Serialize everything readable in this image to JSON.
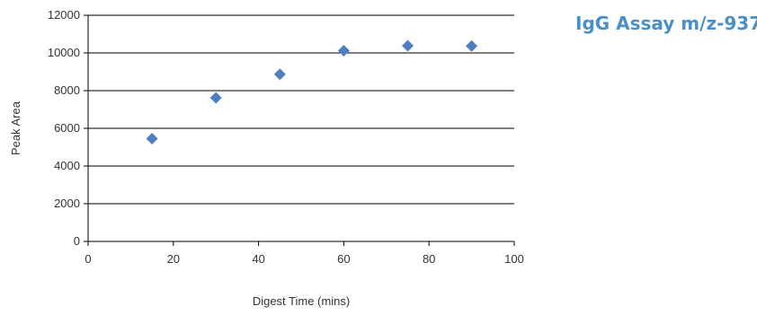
{
  "chart_data": {
    "type": "scatter",
    "title": "IgG Assay m/z-937",
    "xlabel": "Digest Time (mins)",
    "ylabel": "Peak Area",
    "xlim": [
      0,
      100
    ],
    "ylim": [
      0,
      12000
    ],
    "x_ticks": [
      0,
      20,
      40,
      60,
      80,
      100
    ],
    "y_ticks": [
      0,
      2000,
      4000,
      6000,
      8000,
      10000,
      12000
    ],
    "x_tick_labels": [
      "0",
      "20",
      "40",
      "60",
      "80",
      "100"
    ],
    "y_tick_labels": [
      "0",
      "2000",
      "4000",
      "6000",
      "8000",
      "10000",
      "12000"
    ],
    "grid": "horizontal",
    "legend": "none",
    "series": [
      {
        "marker": "diamond",
        "color": "#4f7ec1",
        "points": [
          {
            "x": 15,
            "y": 5450
          },
          {
            "x": 30,
            "y": 7620
          },
          {
            "x": 45,
            "y": 8870
          },
          {
            "x": 60,
            "y": 10120
          },
          {
            "x": 75,
            "y": 10380
          },
          {
            "x": 90,
            "y": 10370
          }
        ]
      }
    ]
  },
  "colors": {
    "title": "#4a90c8",
    "grid": "#000000",
    "text": "#333333"
  }
}
